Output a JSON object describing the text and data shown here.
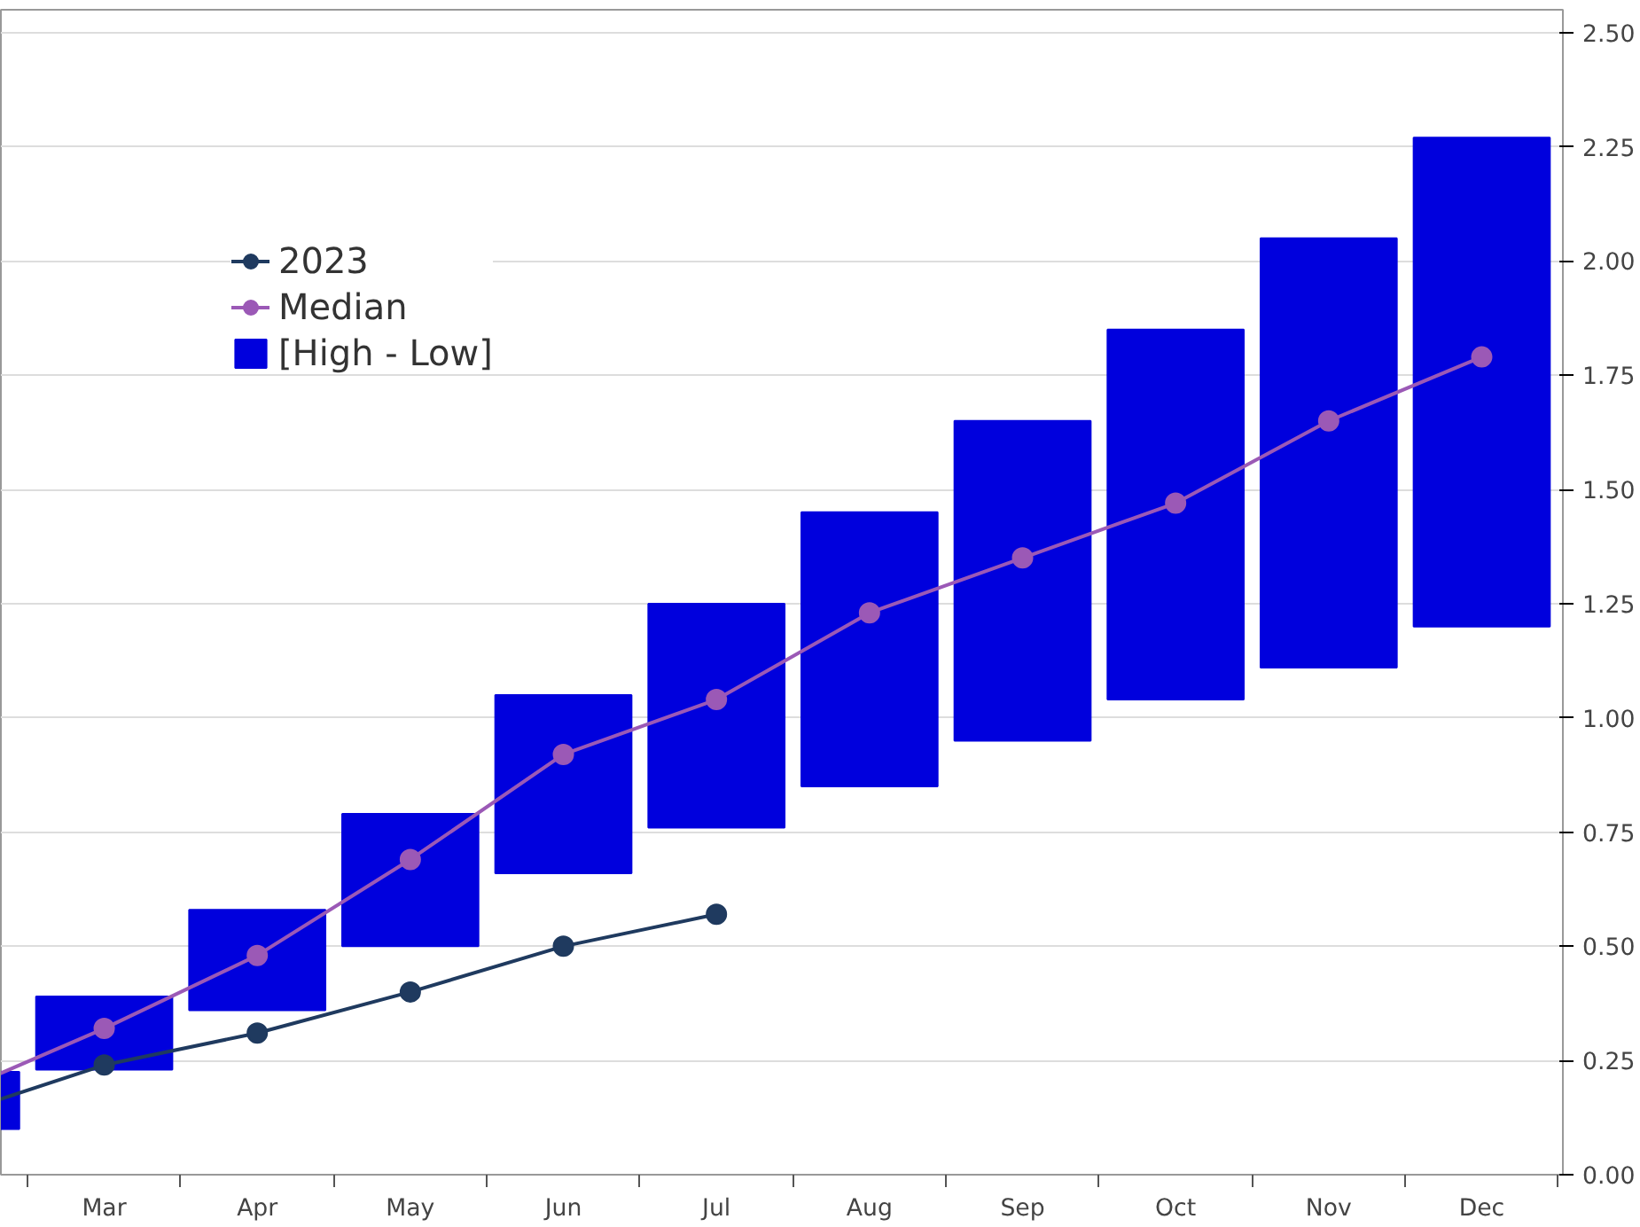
{
  "chart_data": {
    "type": "bar",
    "categories": [
      null,
      "Mar",
      "Apr",
      "May",
      "Jun",
      "Jul",
      "Aug",
      "Sep",
      "Oct",
      "Nov",
      "Dec"
    ],
    "series": [
      {
        "name": "[High - Low]",
        "color": "#0000dd",
        "base": [
          0.1,
          0.23,
          0.36,
          0.5,
          0.66,
          0.76,
          0.85,
          0.95,
          1.04,
          1.11,
          1.2
        ],
        "values": [
          0.125,
          0.16,
          0.22,
          0.29,
          0.39,
          0.49,
          0.6,
          0.7,
          0.81,
          0.94,
          1.07
        ]
      },
      {
        "name": "2023",
        "type": "line",
        "color": "#1f3a5f",
        "values": [
          0.13,
          0.24,
          0.31,
          0.4,
          0.5,
          0.57,
          null,
          null,
          null,
          null,
          null
        ]
      },
      {
        "name": "Median",
        "type": "line",
        "color": "#9b59b6",
        "values": [
          0.175,
          0.32,
          0.48,
          0.69,
          0.92,
          1.04,
          1.23,
          1.35,
          1.47,
          1.65,
          1.79
        ]
      }
    ],
    "ylim": [
      0,
      2.55
    ],
    "yticks": [
      {
        "value": 0,
        "label": "0.00"
      },
      {
        "value": 0.25,
        "label": "0.25"
      },
      {
        "value": 0.5,
        "label": "0.50"
      },
      {
        "value": 0.75,
        "label": "0.75"
      },
      {
        "value": 1,
        "label": "1.00"
      },
      {
        "value": 1.25,
        "label": "1.25"
      },
      {
        "value": 1.5,
        "label": "1.50"
      },
      {
        "value": 1.75,
        "label": "1.75"
      },
      {
        "value": 2,
        "label": "2.00"
      },
      {
        "value": 2.25,
        "label": "2.25"
      },
      {
        "value": 2.5,
        "label": "2.50"
      }
    ],
    "grid": "y",
    "legend": "top left",
    "marker": "circle"
  }
}
